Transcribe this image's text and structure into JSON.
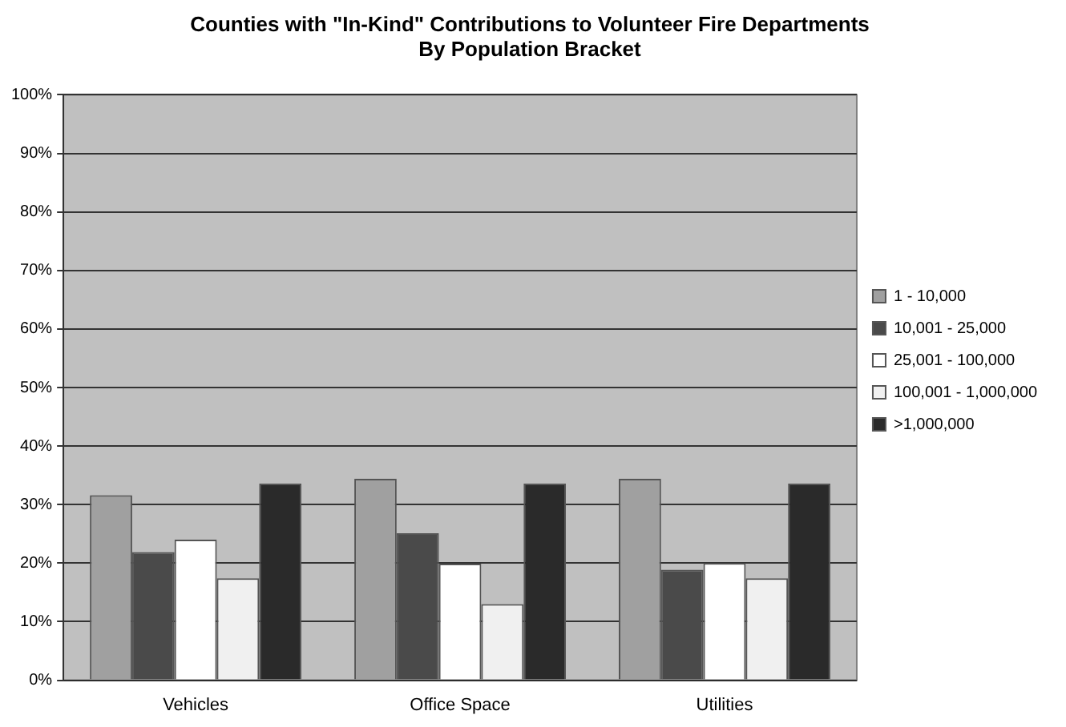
{
  "chart_data": {
    "type": "bar",
    "title": "Counties with \"In-Kind\" Contributions to Volunteer Fire Departments\nBy Population Bracket",
    "categories": [
      "Vehicles",
      "Office Space",
      "Utilities"
    ],
    "series": [
      {
        "name": "1 - 10,000",
        "color": "#a0a0a0",
        "values": [
          31.6,
          34.4,
          34.4
        ]
      },
      {
        "name": "10,001 - 25,000",
        "color": "#4a4a4a",
        "values": [
          21.9,
          25.1,
          18.9
        ]
      },
      {
        "name": "25,001 - 100,000",
        "color": "#ffffff",
        "values": [
          24,
          19.9,
          20
        ]
      },
      {
        "name": "100,001 - 1,000,000",
        "color": "#f0f0f0",
        "values": [
          17.4,
          13,
          17.4
        ]
      },
      {
        "name": ">1,000,000",
        "color": "#2a2a2a",
        "values": [
          33.6,
          33.6,
          33.6
        ]
      }
    ],
    "ylim": [
      0,
      100
    ],
    "yticks": [
      {
        "value": 0,
        "label": "0%"
      },
      {
        "value": 10,
        "label": "10%"
      },
      {
        "value": 20,
        "label": "20%"
      },
      {
        "value": 30,
        "label": "30%"
      },
      {
        "value": 40,
        "label": "40%"
      },
      {
        "value": 50,
        "label": "50%"
      },
      {
        "value": 60,
        "label": "60%"
      },
      {
        "value": 70,
        "label": "70%"
      },
      {
        "value": 80,
        "label": "80%"
      },
      {
        "value": 90,
        "label": "90%"
      },
      {
        "value": 100,
        "label": "100%"
      }
    ],
    "grid": "y",
    "legend": "right"
  }
}
